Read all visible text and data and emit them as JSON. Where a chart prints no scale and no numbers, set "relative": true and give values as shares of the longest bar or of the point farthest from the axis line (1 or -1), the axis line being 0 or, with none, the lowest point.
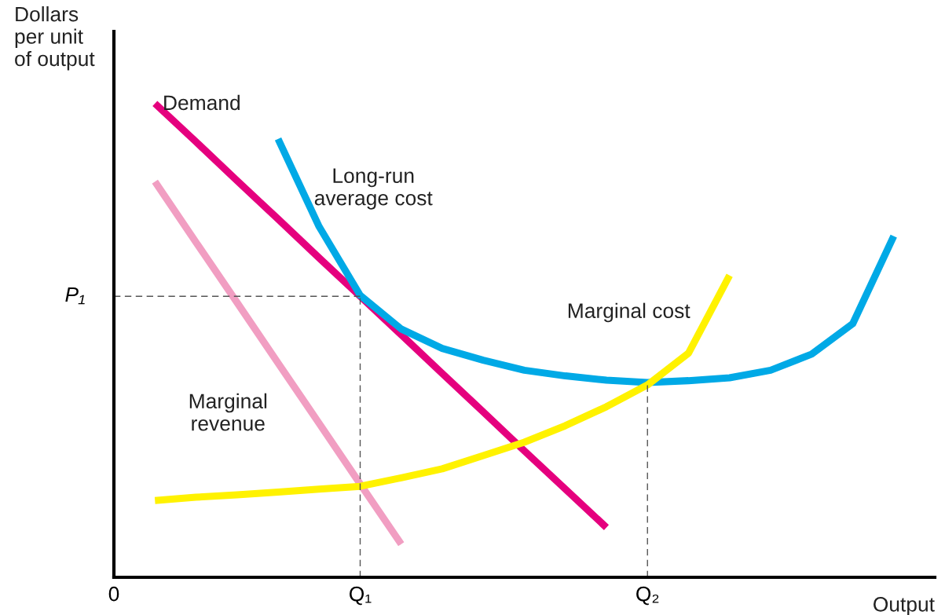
{
  "chart_data": {
    "type": "line",
    "relative": true,
    "ylabel": "Dollars\nper unit\nof output",
    "xlabel": "Output",
    "categories": [
      "0",
      null,
      null,
      null,
      null,
      null,
      "Q₁",
      null,
      null,
      null,
      null,
      null,
      null,
      "Q₂",
      null,
      null,
      null,
      null,
      null,
      null,
      null
    ],
    "series": [
      {
        "name": "Demand",
        "color": "#e5007e",
        "values": [
          null,
          1.0,
          0.919,
          0.837,
          0.756,
          0.674,
          0.593,
          0.512,
          0.43,
          0.349,
          0.267,
          0.186,
          0.105,
          null,
          null,
          null,
          null,
          null,
          null,
          null,
          null
        ]
      },
      {
        "name": "Marginal\nrevenue",
        "color": "#f19ec2",
        "values": [
          null,
          0.835,
          0.707,
          0.58,
          0.452,
          0.325,
          0.197,
          0.07,
          null,
          null,
          null,
          null,
          null,
          null,
          null,
          null,
          null,
          null,
          null,
          null,
          null
        ]
      },
      {
        "name": "Long-run\naverage cost",
        "color": "#00a9e6",
        "values": [
          null,
          null,
          null,
          null,
          0.925,
          0.74,
          0.595,
          0.524,
          0.483,
          0.458,
          0.437,
          0.425,
          0.416,
          0.411,
          0.415,
          0.421,
          0.437,
          0.471,
          0.535,
          0.72,
          null
        ]
      },
      {
        "name": "Marginal cost",
        "color": "#fff200",
        "values": [
          null,
          0.162,
          0.169,
          0.174,
          0.18,
          0.186,
          0.192,
          0.21,
          0.229,
          0.257,
          0.285,
          0.32,
          0.36,
          0.406,
          0.473,
          0.637,
          null,
          null,
          null,
          null,
          null
        ]
      }
    ],
    "ref_lines": [
      {
        "axis": "y",
        "value": 0.593,
        "label": "P₁",
        "line_style": "dashed"
      },
      {
        "axis": "x",
        "value": "Q₁",
        "line_style": "dashed"
      },
      {
        "axis": "x",
        "value": "Q₂",
        "line_style": "dashed"
      }
    ]
  }
}
